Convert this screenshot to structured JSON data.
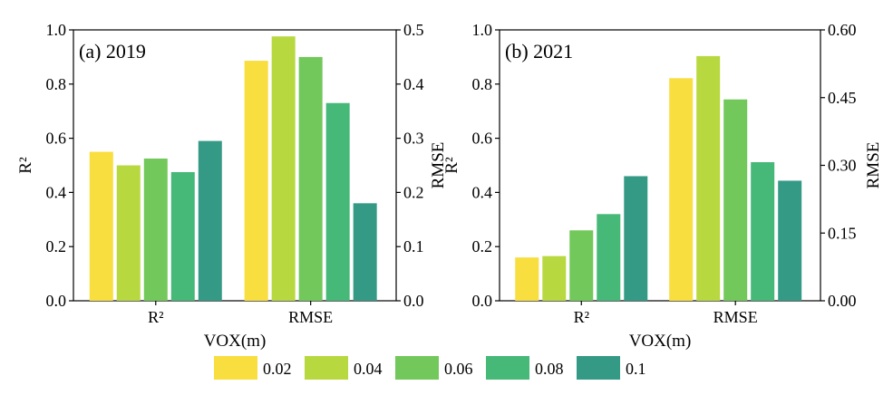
{
  "legend": {
    "entries": [
      {
        "label": "0.02",
        "color": "#F8DE3E"
      },
      {
        "label": "0.04",
        "color": "#B8D840"
      },
      {
        "label": "0.06",
        "color": "#72C85A"
      },
      {
        "label": "0.08",
        "color": "#46B878"
      },
      {
        "label": "0.1",
        "color": "#349A85"
      }
    ]
  },
  "chart_data": [
    {
      "type": "bar",
      "panel_label": "(a) 2019",
      "xlabel": "VOX(m)",
      "ylabel_left": "R²",
      "ylabel_right": "RMSE",
      "categories": [
        "R²",
        "RMSE"
      ],
      "series_labels": [
        "0.02",
        "0.04",
        "0.06",
        "0.08",
        "0.1"
      ],
      "left_axis": {
        "min": 0,
        "max": 1.0,
        "ticks": [
          "0.0",
          "0.2",
          "0.4",
          "0.6",
          "0.8",
          "1.0"
        ]
      },
      "right_axis": {
        "min": 0,
        "max": 0.5,
        "ticks": [
          "0.0",
          "0.1",
          "0.2",
          "0.3",
          "0.4",
          "0.5"
        ]
      },
      "values": {
        "R²": [
          0.55,
          0.5,
          0.525,
          0.475,
          0.59
        ],
        "RMSE": [
          0.443,
          0.488,
          0.45,
          0.365,
          0.18
        ]
      }
    },
    {
      "type": "bar",
      "panel_label": "(b) 2021",
      "xlabel": "VOX(m)",
      "ylabel_left": "R²",
      "ylabel_right": "RMSE",
      "categories": [
        "R²",
        "RMSE"
      ],
      "series_labels": [
        "0.02",
        "0.04",
        "0.06",
        "0.08",
        "0.1"
      ],
      "left_axis": {
        "min": 0,
        "max": 1.0,
        "ticks": [
          "0.0",
          "0.2",
          "0.4",
          "0.6",
          "0.8",
          "1.0"
        ]
      },
      "right_axis": {
        "min": 0,
        "max": 0.6,
        "ticks": [
          "0.00",
          "0.15",
          "0.30",
          "0.45",
          "0.60"
        ]
      },
      "values": {
        "R²": [
          0.16,
          0.165,
          0.26,
          0.32,
          0.46
        ],
        "RMSE": [
          0.493,
          0.542,
          0.446,
          0.307,
          0.266
        ]
      }
    }
  ]
}
